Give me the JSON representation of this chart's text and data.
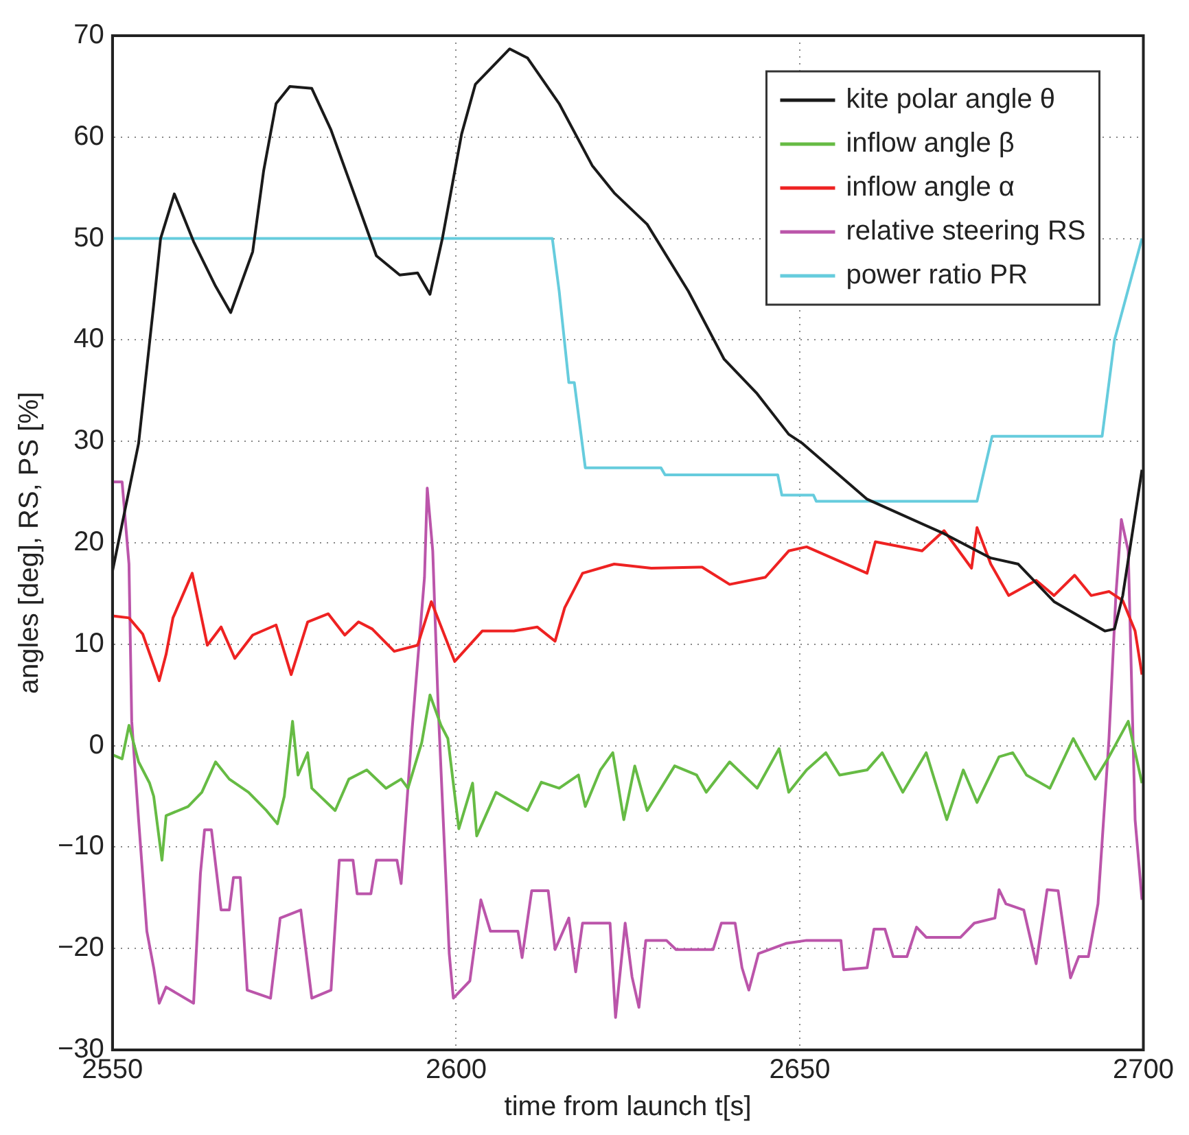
{
  "chart_data": {
    "type": "line",
    "xlabel": "time from launch t[s]",
    "ylabel": "angles [deg], RS, PS [%]",
    "xlim": [
      2550,
      2700
    ],
    "xticks": [
      2550,
      2600,
      2650,
      2700
    ],
    "ylim": [
      -30,
      70
    ],
    "yticks": [
      -30,
      -20,
      -10,
      0,
      10,
      20,
      30,
      40,
      50,
      60,
      70
    ],
    "grid": true,
    "legend": "top right",
    "marker": "none",
    "line_style": "solid",
    "series": [
      {
        "name": "kite polar angle θ",
        "color": "#1a1a1a",
        "x": [
          2550,
          2553.8,
          2556,
          2557,
          2559,
          2561.8,
          2565,
          2567.2,
          2570.4,
          2572,
          2573.8,
          2575.8,
          2579,
          2581.8,
          2585.8,
          2588.4,
          2591.8,
          2594.4,
          2596.2,
          2598,
          2600.8,
          2602.8,
          2607.8,
          2610.4,
          2615,
          2619.8,
          2623,
          2627.8,
          2633.8,
          2639,
          2643.8,
          2648.4,
          2650.4,
          2659.8,
          2671,
          2677.8,
          2681.8,
          2687,
          2694.4,
          2695.8,
          2697,
          2698,
          2699.8
        ],
        "values": [
          17.2,
          29.8,
          43.5,
          50,
          54.4,
          49.7,
          45.3,
          42.7,
          48.7,
          56.7,
          63.3,
          65,
          64.8,
          60.7,
          53.2,
          48.3,
          46.4,
          46.6,
          44.5,
          50,
          60.3,
          65.2,
          68.7,
          67.8,
          63.3,
          57.2,
          54.5,
          51.4,
          44.8,
          38.1,
          34.7,
          30.7,
          29.8,
          24.3,
          20.9,
          18.5,
          17.9,
          14.2,
          11.3,
          11.5,
          14.8,
          19.2,
          27.2
        ]
      },
      {
        "name": "inflow angle β",
        "color": "#66bb44",
        "x": [
          2550,
          2551.4,
          2552.4,
          2553.8,
          2555.4,
          2556,
          2557.2,
          2557.8,
          2561,
          2563,
          2565,
          2567,
          2569.8,
          2572.4,
          2574,
          2575,
          2576.2,
          2577,
          2578.4,
          2579,
          2582.4,
          2584.4,
          2587,
          2589.8,
          2592,
          2593,
          2595,
          2596.2,
          2597.8,
          2598.8,
          2600.4,
          2602.4,
          2603,
          2605.8,
          2610.4,
          2612.4,
          2615,
          2617.8,
          2618.8,
          2621,
          2622.8,
          2624.4,
          2626,
          2627.8,
          2631.8,
          2635,
          2636.4,
          2639.8,
          2643.8,
          2647,
          2648.4,
          2651,
          2653.8,
          2655.8,
          2659.8,
          2662,
          2665,
          2668.4,
          2671.4,
          2673.8,
          2675.8,
          2679,
          2681,
          2683,
          2686.4,
          2689.8,
          2693,
          2695,
          2697.8,
          2699.8
        ],
        "values": [
          -0.9,
          -1.3,
          2,
          -1.6,
          -3.7,
          -5,
          -11.3,
          -6.9,
          -6,
          -4.6,
          -1.6,
          -3.3,
          -4.6,
          -6.4,
          -7.7,
          -5,
          2.4,
          -2.9,
          -0.7,
          -4.2,
          -6.4,
          -3.3,
          -2.4,
          -4.2,
          -3.3,
          -4.2,
          0.3,
          5,
          2,
          0.7,
          -8.2,
          -3.7,
          -8.9,
          -4.6,
          -6.4,
          -3.6,
          -4.2,
          -2.9,
          -6,
          -2.4,
          -0.7,
          -7.3,
          -2,
          -6.4,
          -2,
          -2.9,
          -4.6,
          -1.6,
          -4.2,
          -0.3,
          -4.6,
          -2.4,
          -0.7,
          -2.9,
          -2.4,
          -0.7,
          -4.6,
          -0.7,
          -7.3,
          -2.4,
          -5.6,
          -1.1,
          -0.7,
          -2.9,
          -4.2,
          0.7,
          -3.3,
          -1.1,
          2.4,
          -3.7
        ]
      },
      {
        "name": "inflow angle α",
        "color": "#ee2222",
        "x": [
          2550,
          2552.4,
          2554.4,
          2556.8,
          2557.8,
          2558.8,
          2561.6,
          2563.8,
          2565.8,
          2567.8,
          2570.4,
          2573.8,
          2576,
          2578.4,
          2581.4,
          2583.8,
          2585.8,
          2587.8,
          2591,
          2594.4,
          2596.4,
          2599.8,
          2603.8,
          2608.4,
          2611.8,
          2614.4,
          2615.8,
          2618.4,
          2623,
          2628.4,
          2635.8,
          2639.8,
          2645,
          2648.4,
          2651,
          2659.8,
          2661,
          2667.8,
          2671,
          2675,
          2675.8,
          2677.8,
          2680.4,
          2684.4,
          2687,
          2690,
          2692.4,
          2695,
          2697,
          2698.8,
          2699.8
        ],
        "values": [
          12.8,
          12.6,
          11,
          6.4,
          9,
          12.6,
          17,
          9.9,
          11.7,
          8.6,
          10.9,
          11.9,
          7,
          12.2,
          13,
          10.9,
          12.2,
          11.5,
          9.3,
          9.9,
          14.2,
          8.3,
          11.3,
          11.3,
          11.7,
          10.3,
          13.6,
          17,
          17.9,
          17.5,
          17.6,
          15.9,
          16.6,
          19.2,
          19.6,
          17,
          20.1,
          19.2,
          21.2,
          17.5,
          21.5,
          17.9,
          14.8,
          16.3,
          14.8,
          16.8,
          14.8,
          15.2,
          14.3,
          11.3,
          7
        ]
      },
      {
        "name": "relative steering RS",
        "color": "#bb55aa",
        "x": [
          2550,
          2551.4,
          2552.4,
          2552.8,
          2553.8,
          2555,
          2556,
          2556.8,
          2557.8,
          2561.8,
          2562.8,
          2563.4,
          2564.4,
          2565.8,
          2567,
          2567.6,
          2568.6,
          2569.6,
          2573,
          2574.4,
          2577.4,
          2579,
          2581.8,
          2583,
          2585,
          2585.6,
          2587.6,
          2588.4,
          2591.4,
          2592,
          2593.6,
          2595.4,
          2595.8,
          2596.6,
          2597.4,
          2599,
          2599.6,
          2602,
          2603.6,
          2605,
          2609,
          2609.6,
          2611,
          2613.4,
          2614.4,
          2616.4,
          2617.4,
          2618.4,
          2622.4,
          2623.2,
          2624.6,
          2625.6,
          2626.6,
          2627.6,
          2630.6,
          2632,
          2637.4,
          2638.6,
          2640.6,
          2641.6,
          2642.6,
          2644,
          2648,
          2651,
          2656,
          2656.4,
          2659.8,
          2660.8,
          2662.4,
          2663.6,
          2665.6,
          2667,
          2668.4,
          2673.4,
          2675.4,
          2678.4,
          2679,
          2680,
          2682.6,
          2684.4,
          2686,
          2687.6,
          2689.4,
          2690.6,
          2692,
          2693.4,
          2695,
          2696,
          2696.8,
          2697.8,
          2698.8,
          2699.8
        ],
        "values": [
          26,
          26,
          17.9,
          2.4,
          -7.3,
          -18.3,
          -21.9,
          -25.4,
          -23.8,
          -25.4,
          -12.6,
          -8.3,
          -8.3,
          -16.2,
          -16.2,
          -13,
          -13,
          -24.1,
          -24.9,
          -17,
          -16.2,
          -24.9,
          -24.1,
          -11.3,
          -11.3,
          -14.6,
          -14.6,
          -11.3,
          -11.3,
          -13.6,
          1.6,
          16.6,
          25.4,
          19.2,
          3.7,
          -20.5,
          -24.9,
          -23.2,
          -15.2,
          -18.3,
          -18.3,
          -20.9,
          -14.3,
          -14.3,
          -20.1,
          -17,
          -22.3,
          -17.5,
          -17.5,
          -26.8,
          -17.5,
          -22.8,
          -25.8,
          -19.2,
          -19.2,
          -20.1,
          -20.1,
          -17.5,
          -17.5,
          -21.9,
          -24.1,
          -20.5,
          -19.5,
          -19.2,
          -19.2,
          -22.1,
          -21.9,
          -18.1,
          -18.1,
          -20.8,
          -20.8,
          -17.9,
          -18.9,
          -18.9,
          -17.5,
          -17,
          -14.2,
          -15.6,
          -16.2,
          -21.5,
          -14.2,
          -14.3,
          -22.9,
          -20.8,
          -20.8,
          -15.6,
          0.7,
          14.8,
          22.3,
          19.2,
          -7.3,
          -15.2
        ]
      },
      {
        "name": "power ratio PR",
        "color": "#66ccdd",
        "x": [
          2550,
          2614,
          2615,
          2616.4,
          2617.2,
          2618.8,
          2629.8,
          2630.4,
          2646.8,
          2647.4,
          2652,
          2652.4,
          2675.8,
          2678,
          2694,
          2695.8,
          2699.8
        ],
        "values": [
          50,
          50,
          44.8,
          35.8,
          35.8,
          27.4,
          27.4,
          26.7,
          26.7,
          24.7,
          24.7,
          24.1,
          24.1,
          30.5,
          30.5,
          40,
          50
        ]
      }
    ]
  }
}
